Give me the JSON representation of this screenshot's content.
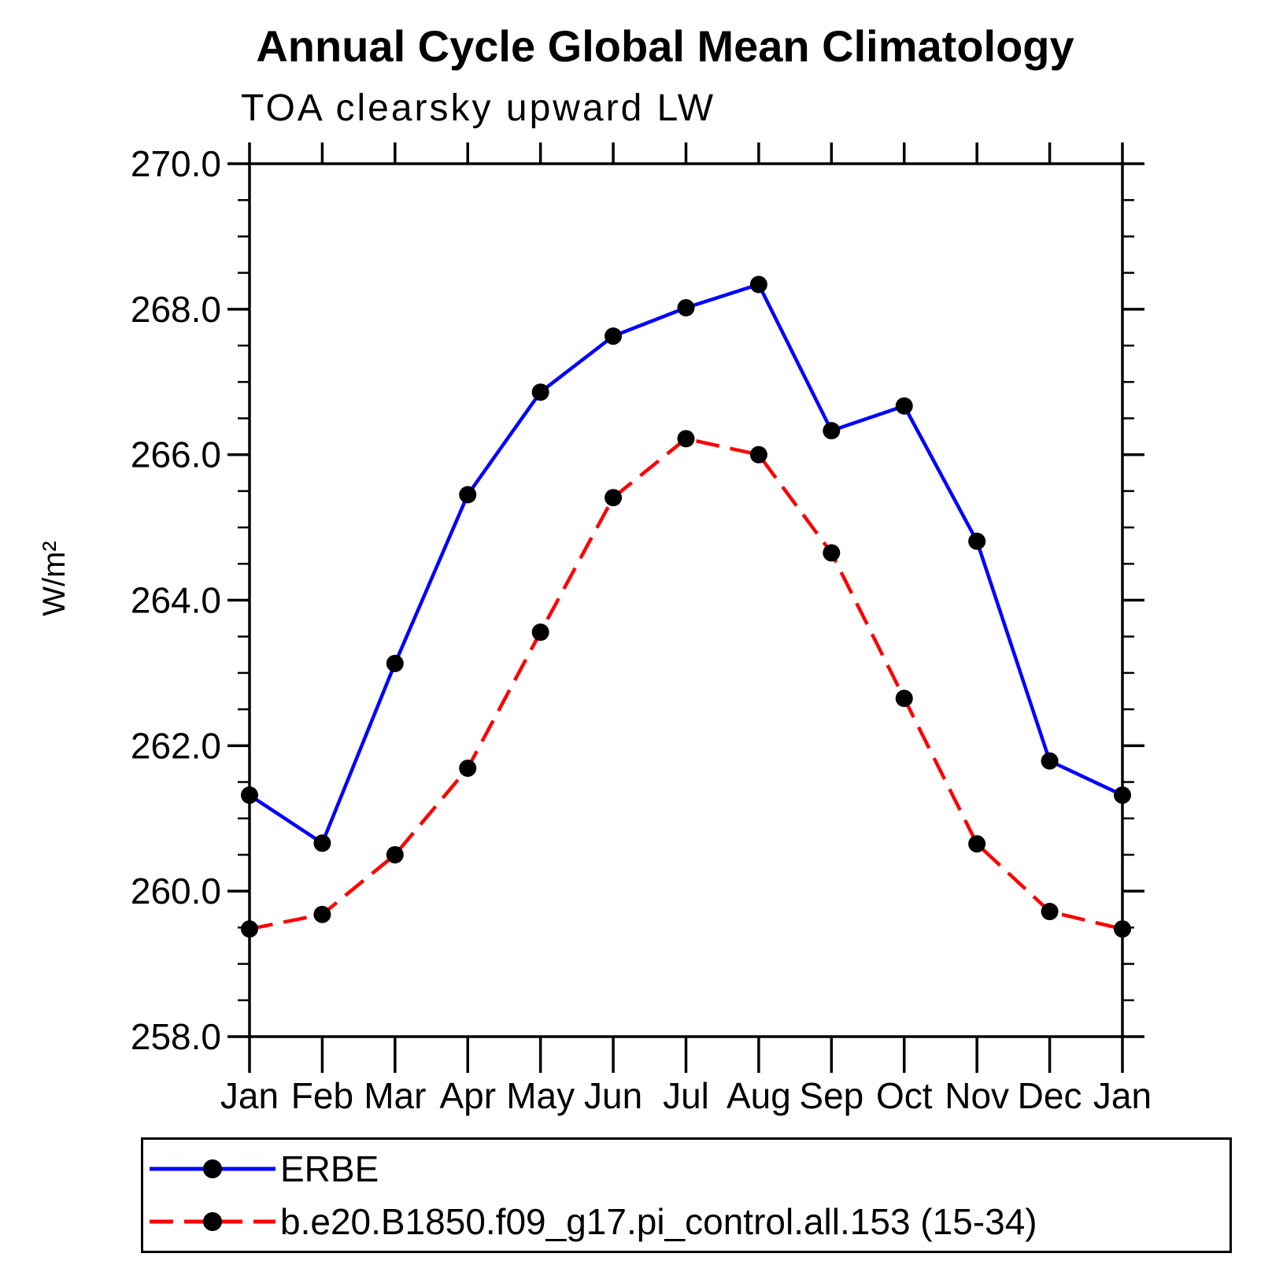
{
  "chart_data": {
    "type": "line",
    "title": "Annual Cycle Global Mean Climatology",
    "subtitle": "TOA clearsky upward LW",
    "xlabel": "",
    "ylabel": "W/m²",
    "x_categories": [
      "Jan",
      "Feb",
      "Mar",
      "Apr",
      "May",
      "Jun",
      "Jul",
      "Aug",
      "Sep",
      "Oct",
      "Nov",
      "Dec",
      "Jan"
    ],
    "ylim": [
      258.0,
      270.0
    ],
    "ytick_interval": 2.0,
    "yminor_interval": 0.5,
    "ytick_labels": [
      "258.0",
      "260.0",
      "262.0",
      "264.0",
      "266.0",
      "268.0",
      "270.0"
    ],
    "grid": false,
    "legend_position": "bottom-left-box",
    "axis_color": "#000000",
    "series": [
      {
        "name": "ERBE",
        "line_color": "#0000ff",
        "line_style": "solid",
        "marker": "filled-circle",
        "marker_color": "#000000",
        "values": [
          261.32,
          260.66,
          263.13,
          265.45,
          266.86,
          267.63,
          268.02,
          268.34,
          266.33,
          266.67,
          264.81,
          261.79,
          261.32
        ]
      },
      {
        "name": "b.e20.B1850.f09_g17.pi_control.all.153 (15-34)",
        "line_color": "#ff0000",
        "line_style": "dashed",
        "marker": "filled-circle",
        "marker_color": "#000000",
        "values": [
          259.48,
          259.68,
          260.5,
          261.69,
          263.56,
          265.41,
          266.22,
          266.0,
          264.65,
          262.65,
          260.65,
          259.72,
          259.48
        ]
      }
    ]
  }
}
